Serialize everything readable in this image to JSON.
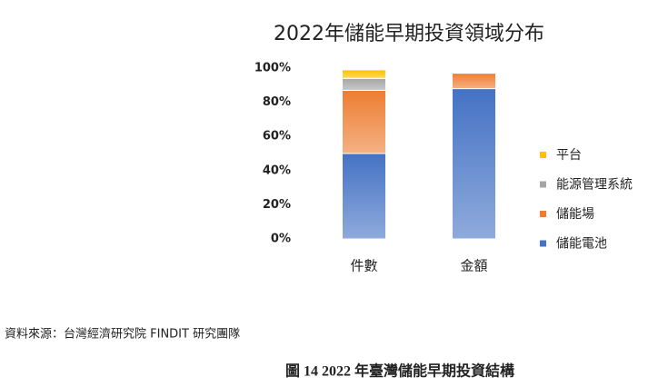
{
  "chart_data": {
    "type": "bar",
    "stacked": true,
    "title": "2022年儲能早期投資領域分布",
    "categories": [
      "件數",
      "金額"
    ],
    "series": [
      {
        "name": "儲能電池",
        "color": "#4472c4",
        "values": [
          50,
          88
        ]
      },
      {
        "name": "儲能場",
        "color": "#ed7d31",
        "values": [
          37,
          9
        ]
      },
      {
        "name": "能源管理系統",
        "color": "#a5a5a5",
        "values": [
          7,
          0
        ]
      },
      {
        "name": "平台",
        "color": "#ffc000",
        "values": [
          5,
          0
        ]
      }
    ],
    "ylim": [
      0,
      100
    ],
    "yticks": [
      {
        "value": 0,
        "label": "0%"
      },
      {
        "value": 20,
        "label": "20%"
      },
      {
        "value": 40,
        "label": "40%"
      },
      {
        "value": 60,
        "label": "60%"
      },
      {
        "value": 80,
        "label": "80%"
      },
      {
        "value": 100,
        "label": "100%"
      }
    ],
    "grid": false,
    "legend": "right"
  },
  "source": "資料來源：台灣經濟研究院 FINDIT 研究團隊",
  "caption": "圖 14 2022 年臺灣儲能早期投資結構"
}
